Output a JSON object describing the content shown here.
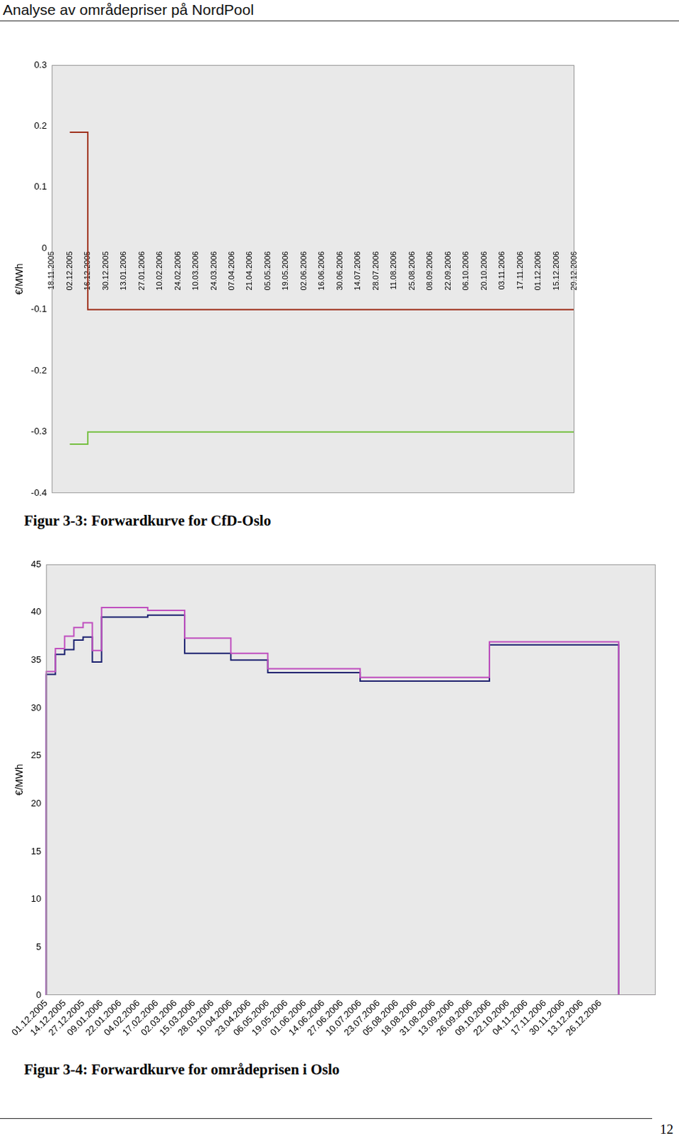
{
  "header": "Analyse av områdepriser på NordPool",
  "page_number": "12",
  "chart_data": [
    {
      "type": "line",
      "title": "Figur 3-3: Forwardkurve for CfD-Oslo",
      "ylabel": "€/MWh",
      "categories": [
        "18.11.2005",
        "02.12.2005",
        "16.12.2005",
        "30.12.2005",
        "13.01.2006",
        "27.01.2006",
        "10.02.2006",
        "24.02.2006",
        "10.03.2006",
        "24.03.2006",
        "07.04.2006",
        "21.04.2006",
        "05.05.2006",
        "19.05.2006",
        "02.06.2006",
        "16.06.2006",
        "30.06.2006",
        "14.07.2006",
        "28.07.2006",
        "11.08.2006",
        "25.08.2006",
        "08.09.2006",
        "22.09.2006",
        "06.10.2006",
        "20.10.2006",
        "03.11.2006",
        "17.11.2006",
        "01.12.2006",
        "15.12.2006",
        "29.12.2006"
      ],
      "series": [
        {
          "color": "#a0321e",
          "values": [
            null,
            0.19,
            0.19,
            -0.1,
            -0.1,
            -0.1,
            -0.1,
            -0.1,
            -0.1,
            -0.1,
            -0.1,
            -0.1,
            -0.1,
            -0.1,
            -0.1,
            -0.1,
            -0.1,
            -0.1,
            -0.1,
            -0.1,
            -0.1,
            -0.1,
            -0.1,
            -0.1,
            -0.1,
            -0.1,
            -0.1,
            -0.1,
            -0.1,
            -0.1
          ]
        },
        {
          "color": "#77c043",
          "values": [
            null,
            -0.32,
            -0.32,
            -0.3,
            -0.3,
            -0.3,
            -0.3,
            -0.3,
            -0.3,
            -0.3,
            -0.3,
            -0.3,
            -0.3,
            -0.3,
            -0.3,
            -0.3,
            -0.3,
            -0.3,
            -0.3,
            -0.3,
            -0.3,
            -0.3,
            -0.3,
            -0.3,
            -0.3,
            -0.3,
            -0.3,
            -0.3,
            -0.3,
            -0.3
          ]
        }
      ],
      "line_style": "stepped",
      "ylim": [
        -0.4,
        0.3
      ],
      "yticks": [
        -0.4,
        -0.3,
        -0.2,
        -0.1,
        0,
        0.1,
        0.2,
        0.3
      ],
      "grid": false
    },
    {
      "type": "line",
      "title": "Figur 3-4: Forwardkurve for områdeprisen i Oslo",
      "ylabel": "€/MWh",
      "categories": [
        "01.12.2005",
        null,
        "14.12.2005",
        null,
        "27.12.2005",
        null,
        "09.01.2006",
        null,
        "22.01.2006",
        null,
        "04.02.2006",
        null,
        "17.02.2006",
        null,
        "02.03.2006",
        null,
        "15.03.2006",
        null,
        "28.03.2006",
        null,
        "10.04.2006",
        null,
        "23.04.2006",
        null,
        "06.05.2006",
        null,
        "19.05.2006",
        null,
        "01.06.2006",
        null,
        "14.06.2006",
        null,
        "27.06.2006",
        null,
        "10.07.2006",
        null,
        "23.07.2006",
        null,
        "05.08.2006",
        null,
        "18.08.2006",
        null,
        "31.08.2006",
        null,
        "13.09.2006",
        null,
        "26.09.2006",
        null,
        "09.10.2006",
        null,
        "22.10.2006",
        null,
        "04.11.2006",
        null,
        "17.11.2006",
        null,
        "30.11.2006",
        null,
        "13.12.2006",
        null,
        "26.12.2006",
        null,
        null,
        null,
        null,
        null,
        null
      ],
      "series": [
        {
          "color": "#c04fbf",
          "values": [
            0,
            33.8,
            36.2,
            37.5,
            38.4,
            38.9,
            36,
            40.5,
            40.5,
            40.5,
            40.5,
            40.5,
            40.2,
            40.2,
            40.2,
            40.2,
            37.3,
            37.3,
            37.3,
            37.3,
            37.3,
            35.7,
            35.7,
            35.7,
            35.7,
            34.1,
            34.1,
            34.1,
            34.1,
            34.1,
            34.1,
            34.1,
            34.1,
            34.1,
            34.1,
            33.2,
            33.2,
            33.2,
            33.2,
            33.2,
            33.2,
            33.2,
            33.2,
            33.2,
            33.2,
            33.2,
            33.2,
            33.2,
            33.2,
            36.9,
            36.9,
            36.9,
            36.9,
            36.9,
            36.9,
            36.9,
            36.9,
            36.9,
            36.9,
            36.9,
            36.9,
            36.9,
            36.9,
            0,
            0,
            0,
            0
          ]
        },
        {
          "color": "#1c2270",
          "values": [
            0,
            33.5,
            35.6,
            36.1,
            37.1,
            37.4,
            34.8,
            39.5,
            39.5,
            39.5,
            39.5,
            39.5,
            39.7,
            39.7,
            39.7,
            39.7,
            35.7,
            35.7,
            35.7,
            35.7,
            35.7,
            35,
            35,
            35,
            35,
            33.7,
            33.7,
            33.7,
            33.7,
            33.7,
            33.7,
            33.7,
            33.7,
            33.7,
            33.7,
            32.8,
            32.8,
            32.8,
            32.8,
            32.8,
            32.8,
            32.8,
            32.8,
            32.8,
            32.8,
            32.8,
            32.8,
            32.8,
            32.8,
            36.6,
            36.6,
            36.6,
            36.6,
            36.6,
            36.6,
            36.6,
            36.6,
            36.6,
            36.6,
            36.6,
            36.6,
            36.6,
            36.6,
            0,
            0,
            0,
            0
          ]
        }
      ],
      "line_style": "stepped",
      "ylim": [
        0,
        45
      ],
      "yticks": [
        0,
        5,
        10,
        15,
        20,
        25,
        30,
        35,
        40,
        45
      ],
      "grid": false
    }
  ]
}
